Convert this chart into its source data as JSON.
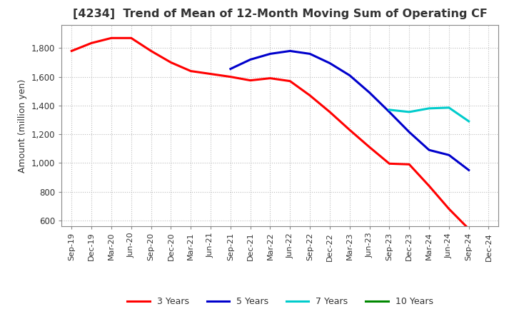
{
  "title": "[4234]  Trend of Mean of 12-Month Moving Sum of Operating CF",
  "ylabel": "Amount (million yen)",
  "background_color": "#ffffff",
  "plot_bg_color": "#ffffff",
  "grid_color": "#bbbbbb",
  "x_labels": [
    "Sep-19",
    "Dec-19",
    "Mar-20",
    "Jun-20",
    "Sep-20",
    "Dec-20",
    "Mar-21",
    "Jun-21",
    "Sep-21",
    "Dec-21",
    "Mar-22",
    "Jun-22",
    "Sep-22",
    "Dec-22",
    "Mar-23",
    "Jun-23",
    "Sep-23",
    "Dec-23",
    "Mar-24",
    "Jun-24",
    "Sep-24",
    "Dec-24"
  ],
  "series": {
    "3 Years": {
      "color": "#ff0000",
      "data_x": [
        0,
        1,
        2,
        3,
        4,
        5,
        6,
        7,
        8,
        9,
        10,
        11,
        12,
        13,
        14,
        15,
        16,
        17,
        18,
        19,
        20
      ],
      "data_y": [
        1780,
        1835,
        1870,
        1870,
        1780,
        1700,
        1640,
        1620,
        1600,
        1575,
        1590,
        1570,
        1470,
        1355,
        1230,
        1110,
        995,
        990,
        840,
        680,
        540
      ]
    },
    "5 Years": {
      "color": "#0000cc",
      "data_x": [
        8,
        9,
        10,
        11,
        12,
        13,
        14,
        15,
        16,
        17,
        18,
        19,
        20
      ],
      "data_y": [
        1655,
        1720,
        1760,
        1780,
        1760,
        1695,
        1610,
        1490,
        1355,
        1215,
        1090,
        1055,
        950
      ]
    },
    "7 Years": {
      "color": "#00cccc",
      "data_x": [
        16,
        17,
        18,
        19,
        20
      ],
      "data_y": [
        1370,
        1355,
        1380,
        1385,
        1290
      ]
    },
    "10 Years": {
      "color": "#008800",
      "data_x": [],
      "data_y": []
    }
  },
  "ylim": [
    560,
    1960
  ],
  "yticks": [
    600,
    800,
    1000,
    1200,
    1400,
    1600,
    1800
  ],
  "legend_order": [
    "3 Years",
    "5 Years",
    "7 Years",
    "10 Years"
  ]
}
